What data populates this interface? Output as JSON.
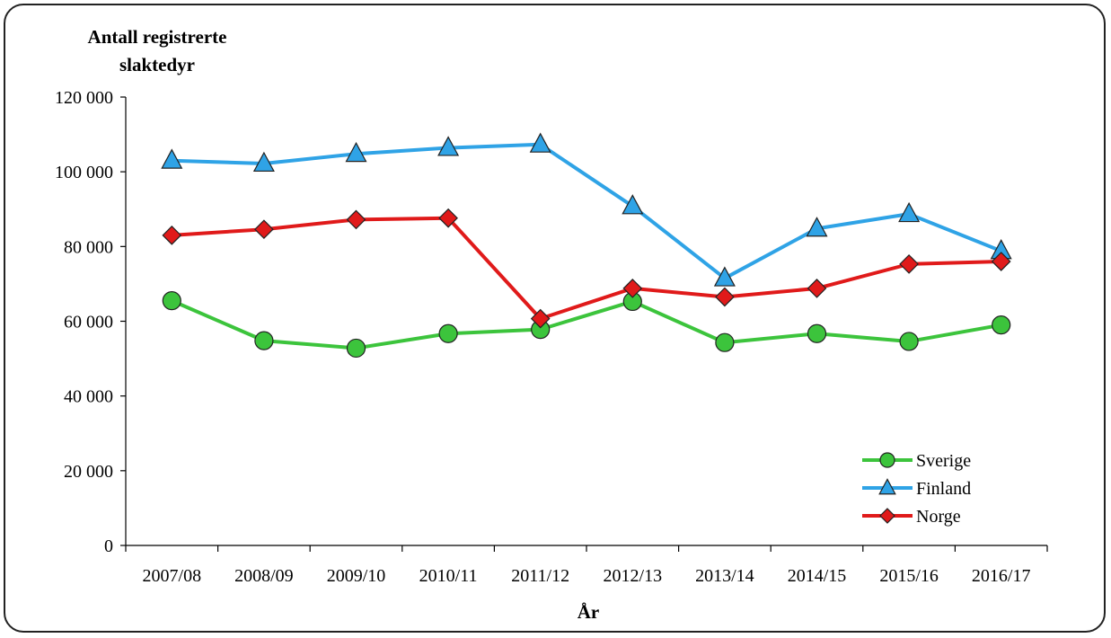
{
  "chart_data": {
    "type": "line",
    "ylabel_lines": [
      "Antall registrerte",
      "slaktedyr"
    ],
    "xlabel": "År",
    "categories": [
      "2007/08",
      "2008/09",
      "2009/10",
      "2010/11",
      "2011/12",
      "2012/13",
      "2013/14",
      "2014/15",
      "2015/16",
      "2016/17"
    ],
    "ylim": [
      0,
      120000
    ],
    "yticks": [
      0,
      20000,
      40000,
      60000,
      80000,
      100000,
      120000
    ],
    "ytick_labels": [
      "0",
      "20 000",
      "40 000",
      "60 000",
      "80 000",
      "100 000",
      "120 000"
    ],
    "grid": false,
    "legend_position": "bottom-right",
    "series": [
      {
        "name": "Sverige",
        "marker": "circle",
        "line_color": "#3cc43c",
        "marker_color": "#3cc43c",
        "values": [
          65500,
          54800,
          52800,
          56700,
          57800,
          65300,
          54300,
          56700,
          54600,
          59000
        ]
      },
      {
        "name": "Finland",
        "marker": "triangle",
        "line_color": "#2fa3e6",
        "marker_color": "#2fa3e6",
        "values": [
          103000,
          102200,
          104800,
          106400,
          107300,
          90800,
          71500,
          84800,
          88700,
          78800
        ]
      },
      {
        "name": "Norge",
        "marker": "diamond",
        "line_color": "#e01a1a",
        "marker_color": "#e01a1a",
        "values": [
          83000,
          84600,
          87200,
          87600,
          60700,
          68800,
          66500,
          68800,
          75300,
          76000
        ]
      }
    ]
  }
}
